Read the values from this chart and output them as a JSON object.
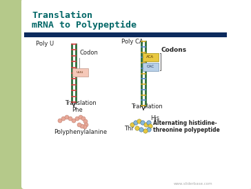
{
  "title_line1": "Translation",
  "title_line2": "mRNA to Polypeptide",
  "title_color": "#006666",
  "bg_color": "#eef0e8",
  "left_bar_color": "#b5c98a",
  "dark_bar_color": "#0d2b5e",
  "white_box_color": "#ffffff",
  "poly_u_label": "Poly U",
  "codon_label": "Codon",
  "uuu_label": "uuu",
  "translation_label1": "Translation",
  "phe_label": "Phe",
  "polyphe_label": "Polyphenylalanine",
  "poly_ca_label": "Poly CA",
  "codons_label": "Codons",
  "aca_label": "ACA",
  "cac_label": "CAC",
  "translation_label2": "Translation",
  "his_label": "His",
  "thr_label": "Thr",
  "alt_label1": "Alternating histidine-",
  "alt_label2": "threonine polypeptide",
  "watermark": "www.sliderbase.com",
  "helix_green": "#2d6e3a",
  "helix_red": "#d84040",
  "helix_gold": "#d4a820",
  "helix_blue": "#5588cc",
  "codon_box_color": "#f5c8b8",
  "aca_box_color": "#e8c840",
  "cac_box_color": "#b8d0e8",
  "polyphe_chain_color": "#e8a898",
  "his_bead_color": "#e8c840",
  "thr_bead_color": "#88b8d8"
}
